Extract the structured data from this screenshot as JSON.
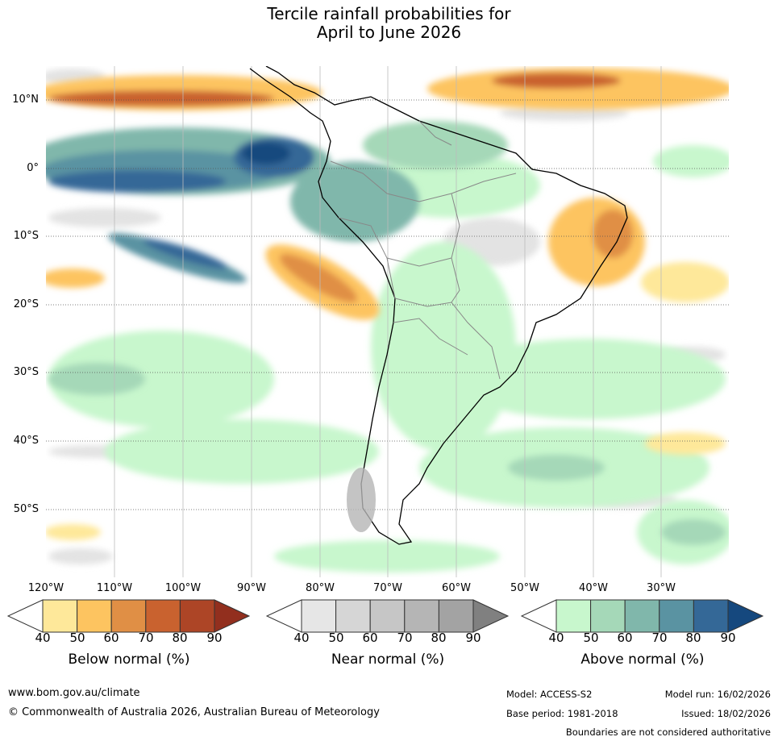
{
  "title_line1": "Tercile rainfall probabilities for",
  "title_line2": "April to June 2026",
  "lat_labels": [
    "10°N",
    "0°",
    "10°S",
    "20°S",
    "30°S",
    "40°S",
    "50°S"
  ],
  "lon_labels": [
    "120°W",
    "110°W",
    "100°W",
    "90°W",
    "80°W",
    "70°W",
    "60°W",
    "50°W",
    "40°W",
    "30°W"
  ],
  "colorbars": {
    "below": {
      "title": "Below normal (%)",
      "ticks": [
        "40",
        "50",
        "60",
        "70",
        "80",
        "90"
      ],
      "colors": [
        "#fee89a",
        "#fdc460",
        "#e08f45",
        "#c9622f",
        "#ad4526",
        "#922f1e"
      ]
    },
    "near": {
      "title": "Near normal (%)",
      "ticks": [
        "40",
        "50",
        "60",
        "70",
        "80",
        "90"
      ],
      "colors": [
        "#e6e6e6",
        "#d6d6d6",
        "#c6c6c6",
        "#b5b5b5",
        "#a3a3a3",
        "#808080"
      ]
    },
    "above": {
      "title": "Above normal (%)",
      "ticks": [
        "40",
        "50",
        "60",
        "70",
        "80",
        "90"
      ],
      "colors": [
        "#c8f7cd",
        "#a5d8b8",
        "#80b7ab",
        "#5a93a2",
        "#346897",
        "#15487e"
      ]
    }
  },
  "footer": {
    "url": "www.bom.gov.au/climate",
    "copyright": "© Commonwealth of Australia 2026, Australian Bureau of Meteorology",
    "model": "Model: ACCESS-S2",
    "model_run": "Model run: 16/02/2026",
    "base_period": "Base period: 1981-2018",
    "issued": "Issued: 18/02/2026",
    "disclaimer": "Boundaries are not considered authoritative"
  }
}
